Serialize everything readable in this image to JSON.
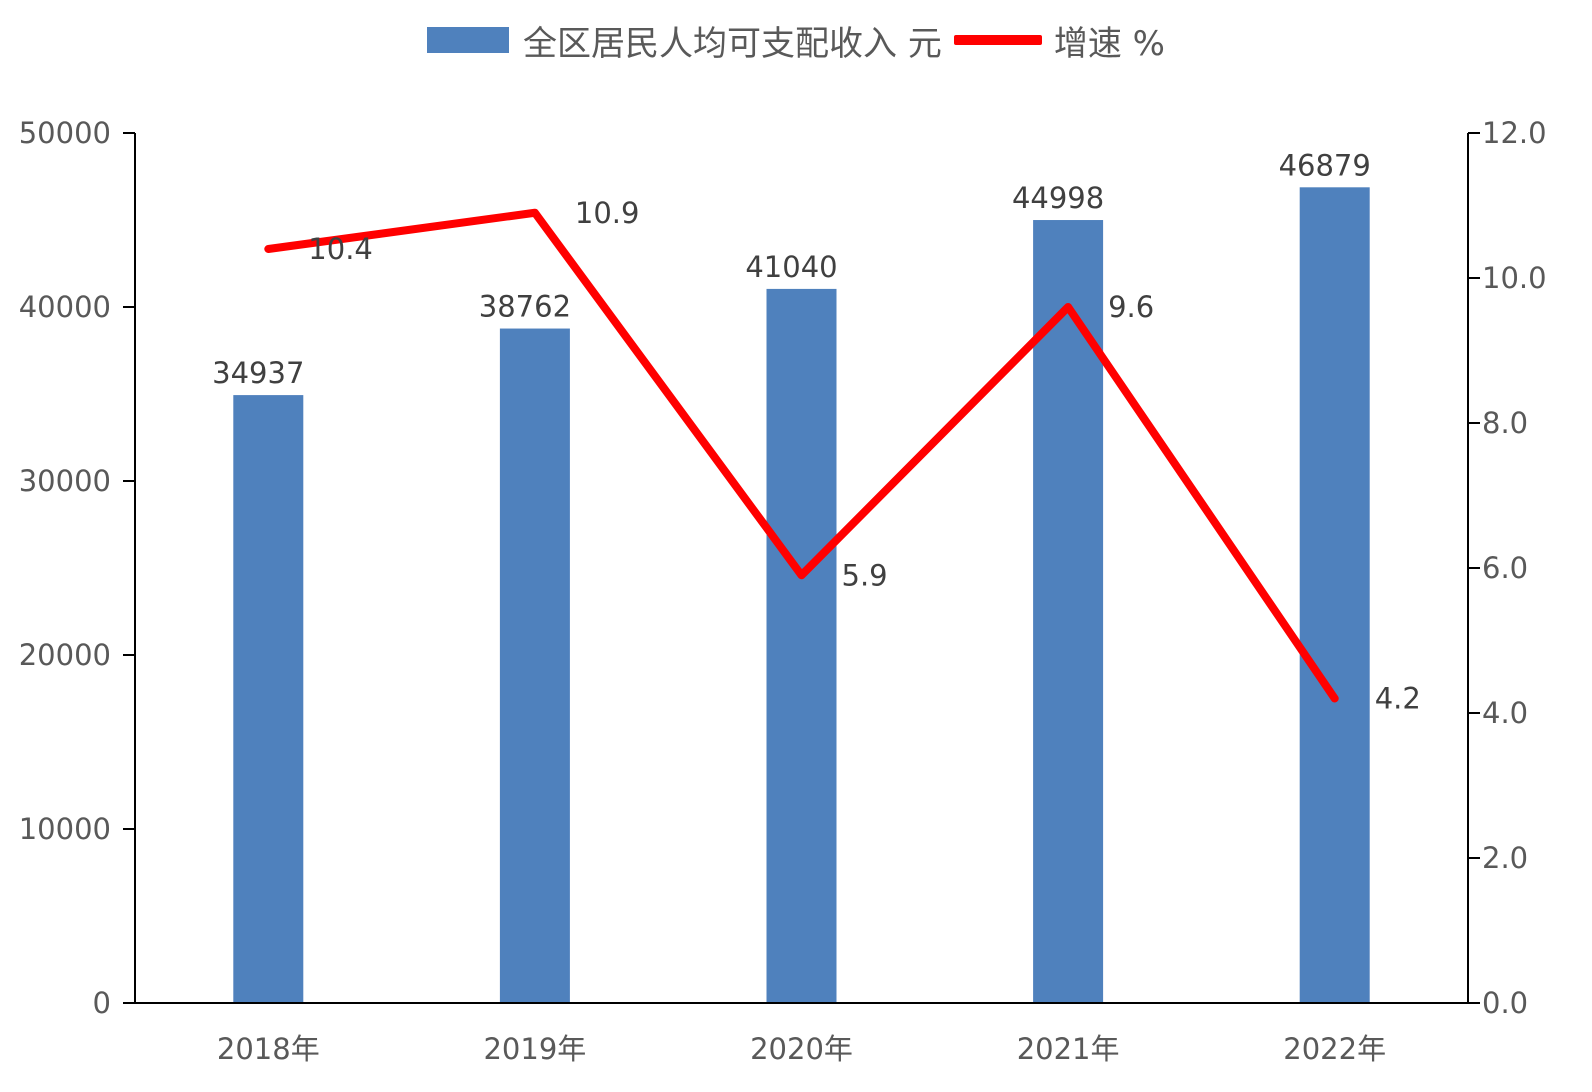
{
  "chart_data": {
    "type": "bar",
    "categories": [
      "2018年",
      "2019年",
      "2020年",
      "2021年",
      "2022年"
    ],
    "series": [
      {
        "name": "全区居民人均可支配收入 元",
        "type": "bar",
        "axis": "left",
        "values": [
          34937,
          38762,
          41040,
          44998,
          46879
        ]
      },
      {
        "name": "增速 %",
        "type": "line",
        "axis": "right",
        "values": [
          10.4,
          10.9,
          5.9,
          9.6,
          4.2
        ]
      }
    ],
    "y_left": {
      "min": 0,
      "max": 50000,
      "ticks": [
        "0",
        "10000",
        "20000",
        "30000",
        "40000",
        "50000"
      ]
    },
    "y_right": {
      "min": 0,
      "max": 12,
      "ticks": [
        "0.0",
        "2.0",
        "4.0",
        "6.0",
        "8.0",
        "10.0",
        "12.0"
      ]
    },
    "legend_position": "top",
    "grid": false,
    "colors": {
      "bar": "#4f81bd",
      "line": "#ff0000",
      "axis": "#000000",
      "text": "#595959"
    }
  }
}
